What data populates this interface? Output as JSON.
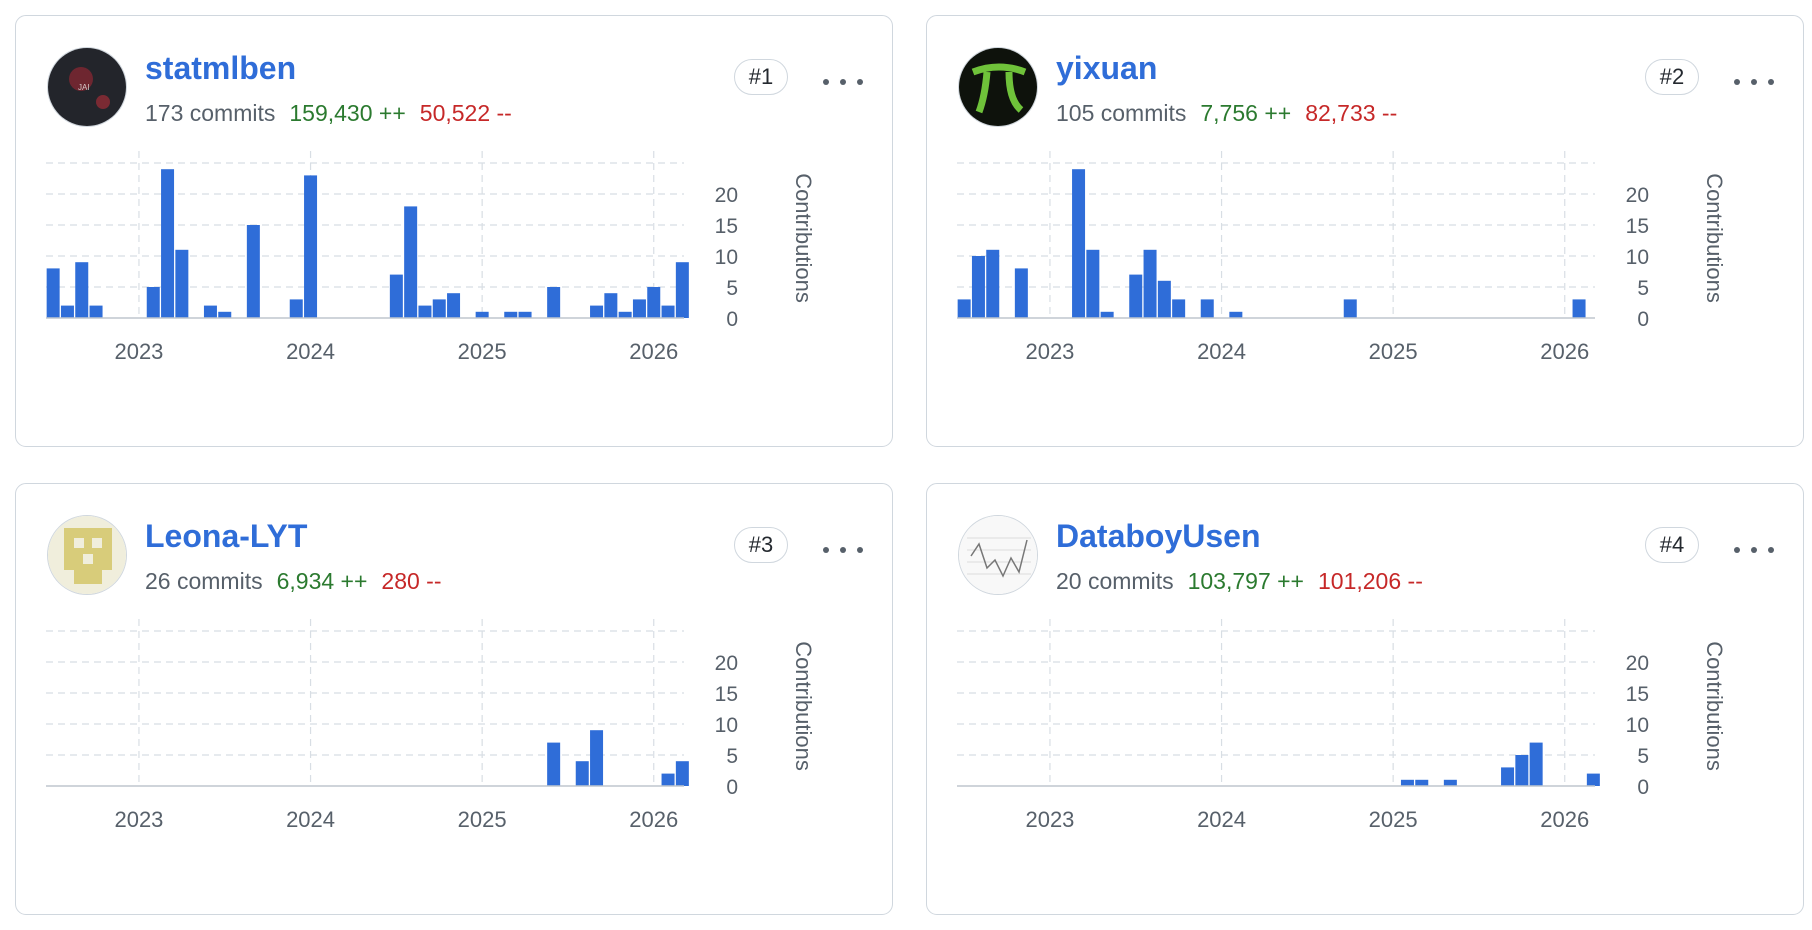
{
  "axis": {
    "ylabel": "Contributions",
    "yticks": [
      0,
      5,
      10,
      15,
      20
    ],
    "ylim": [
      0,
      25
    ],
    "xticks": [
      "2023",
      "2024",
      "2025",
      "2026"
    ]
  },
  "colors": {
    "bar": "#2f6dd8",
    "grid": "#d8dee4",
    "username": "#2f6dd8",
    "additions": "#2b7a2f",
    "deletions": "#c62828"
  },
  "contributors": [
    {
      "username": "statmlben",
      "rank": "#1",
      "commits": "173 commits",
      "additions": "159,430 ++",
      "deletions": "50,522 --",
      "avatar_icon": "jai-avatar-icon"
    },
    {
      "username": "yixuan",
      "rank": "#2",
      "commits": "105 commits",
      "additions": "7,756 ++",
      "deletions": "82,733 --",
      "avatar_icon": "pi-avatar-icon"
    },
    {
      "username": "Leona-LYT",
      "rank": "#3",
      "commits": "26 commits",
      "additions": "6,934 ++",
      "deletions": "280 --",
      "avatar_icon": "identicon-avatar-icon"
    },
    {
      "username": "DataboyUsen",
      "rank": "#4",
      "commits": "20 commits",
      "additions": "103,797 ++",
      "deletions": "101,206 --",
      "avatar_icon": "line-plot-avatar-icon"
    }
  ],
  "chart_data": [
    {
      "type": "bar",
      "title": "",
      "xlabel": "",
      "ylabel": "Contributions",
      "ylim": [
        0,
        25
      ],
      "x_unit": "month",
      "x_range": [
        "2022-07",
        "2026-03"
      ],
      "series": [
        {
          "values": [
            [
              "2022-07",
              8
            ],
            [
              "2022-08",
              2
            ],
            [
              "2022-09",
              9
            ],
            [
              "2022-10",
              2
            ],
            [
              "2023-02",
              5
            ],
            [
              "2023-03",
              24
            ],
            [
              "2023-04",
              11
            ],
            [
              "2023-06",
              2
            ],
            [
              "2023-07",
              1
            ],
            [
              "2023-09",
              15
            ],
            [
              "2023-12",
              3
            ],
            [
              "2024-01",
              23
            ],
            [
              "2024-07",
              7
            ],
            [
              "2024-08",
              18
            ],
            [
              "2024-09",
              2
            ],
            [
              "2024-10",
              3
            ],
            [
              "2024-11",
              4
            ],
            [
              "2025-01",
              1
            ],
            [
              "2025-03",
              1
            ],
            [
              "2025-04",
              1
            ],
            [
              "2025-06",
              5
            ],
            [
              "2025-09",
              2
            ],
            [
              "2025-10",
              4
            ],
            [
              "2025-11",
              1
            ],
            [
              "2025-12",
              3
            ],
            [
              "2026-01",
              5
            ],
            [
              "2026-02",
              2
            ],
            [
              "2026-03",
              9
            ]
          ]
        }
      ]
    },
    {
      "type": "bar",
      "title": "",
      "xlabel": "",
      "ylabel": "Contributions",
      "ylim": [
        0,
        25
      ],
      "x_unit": "month",
      "x_range": [
        "2022-07",
        "2026-03"
      ],
      "series": [
        {
          "values": [
            [
              "2022-07",
              3
            ],
            [
              "2022-08",
              10
            ],
            [
              "2022-09",
              11
            ],
            [
              "2022-11",
              8
            ],
            [
              "2023-03",
              24
            ],
            [
              "2023-04",
              11
            ],
            [
              "2023-05",
              1
            ],
            [
              "2023-07",
              7
            ],
            [
              "2023-08",
              11
            ],
            [
              "2023-09",
              6
            ],
            [
              "2023-10",
              3
            ],
            [
              "2023-12",
              3
            ],
            [
              "2024-02",
              1
            ],
            [
              "2024-10",
              3
            ],
            [
              "2026-02",
              3
            ]
          ]
        }
      ]
    },
    {
      "type": "bar",
      "title": "",
      "xlabel": "",
      "ylabel": "Contributions",
      "ylim": [
        0,
        25
      ],
      "x_unit": "month",
      "x_range": [
        "2022-07",
        "2026-03"
      ],
      "series": [
        {
          "values": [
            [
              "2025-06",
              7
            ],
            [
              "2025-08",
              4
            ],
            [
              "2025-09",
              9
            ],
            [
              "2026-02",
              2
            ],
            [
              "2026-03",
              4
            ]
          ]
        }
      ]
    },
    {
      "type": "bar",
      "title": "",
      "xlabel": "",
      "ylabel": "Contributions",
      "ylim": [
        0,
        25
      ],
      "x_unit": "month",
      "x_range": [
        "2022-07",
        "2026-03"
      ],
      "series": [
        {
          "values": [
            [
              "2025-02",
              1
            ],
            [
              "2025-03",
              1
            ],
            [
              "2025-05",
              1
            ],
            [
              "2025-09",
              3
            ],
            [
              "2025-10",
              5
            ],
            [
              "2025-11",
              7
            ],
            [
              "2026-03",
              2
            ]
          ]
        }
      ]
    }
  ]
}
